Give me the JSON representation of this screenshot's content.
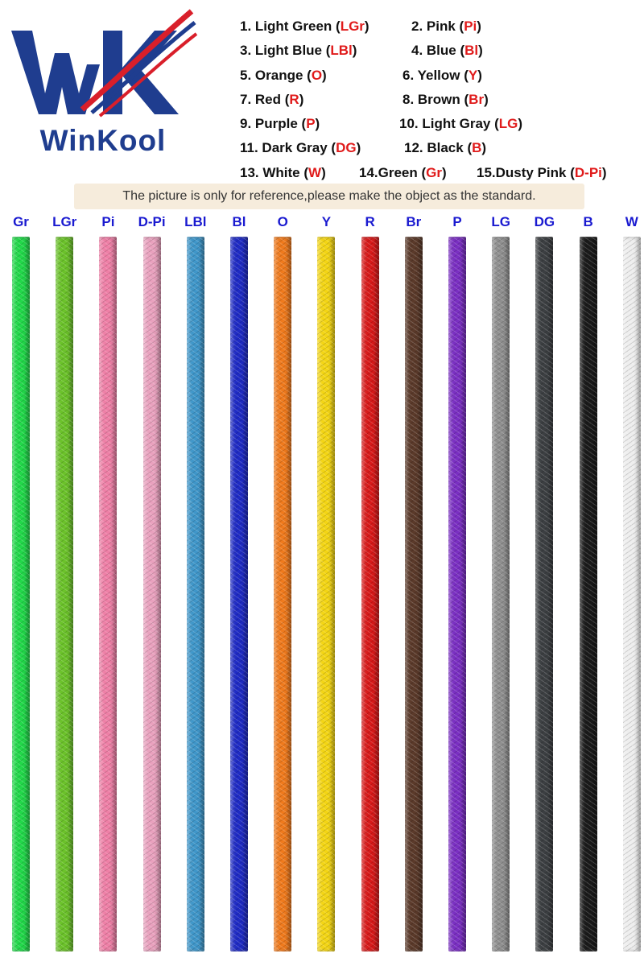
{
  "brand": {
    "name": "WinKool",
    "colors": {
      "navy": "#1f3d8f",
      "red": "#d91f2a",
      "white": "#ffffff"
    }
  },
  "legend": [
    [
      {
        "label": "1. Light Green (",
        "code": "LGr",
        "suffix": ")"
      },
      {
        "label": "2. Pink (",
        "code": "Pi",
        "suffix": ")"
      }
    ],
    [
      {
        "label": "3. Light Blue (",
        "code": "LBl",
        "suffix": ")"
      },
      {
        "label": "4. Blue (",
        "code": "Bl",
        "suffix": ")"
      }
    ],
    [
      {
        "label": "5. Orange (",
        "code": "O",
        "suffix": ")"
      },
      {
        "label": "6. Yellow (",
        "code": "Y",
        "suffix": ")"
      }
    ],
    [
      {
        "label": "7. Red (",
        "code": "R",
        "suffix": ")"
      },
      {
        "label": "8. Brown (",
        "code": "Br",
        "suffix": ")"
      }
    ],
    [
      {
        "label": "9. Purple (",
        "code": "P",
        "suffix": ")"
      },
      {
        "label": "10. Light Gray (",
        "code": "LG",
        "suffix": ")"
      }
    ],
    [
      {
        "label": "11. Dark Gray (",
        "code": "DG",
        "suffix": ")"
      },
      {
        "label": "12. Black (",
        "code": "B",
        "suffix": ")"
      }
    ],
    [
      {
        "label": "13. White (",
        "code": "W",
        "suffix": ")"
      },
      {
        "label": "14.Green (",
        "code": "Gr",
        "suffix": ")"
      },
      {
        "label": "15.Dusty Pink (",
        "code": "D-Pi",
        "suffix": ")"
      }
    ]
  ],
  "notice": "The picture is only for reference,please make the object as the standard.",
  "cables": [
    {
      "label": "Gr",
      "color": "#22d84a"
    },
    {
      "label": "LGr",
      "color": "#6bc22a"
    },
    {
      "label": "Pi",
      "color": "#ee7fa6"
    },
    {
      "label": "D-Pi",
      "color": "#e9a1be"
    },
    {
      "label": "LBl",
      "color": "#3f96c9"
    },
    {
      "label": "Bl",
      "color": "#1f2bc4"
    },
    {
      "label": "O",
      "color": "#ef7a1d"
    },
    {
      "label": "Y",
      "color": "#f3d514"
    },
    {
      "label": "R",
      "color": "#d81a1a"
    },
    {
      "label": "Br",
      "color": "#5b3a2a"
    },
    {
      "label": "P",
      "color": "#7a2fc2"
    },
    {
      "label": "LG",
      "color": "#8f8f8f"
    },
    {
      "label": "DG",
      "color": "#3c3f42"
    },
    {
      "label": "B",
      "color": "#1a1a1a"
    },
    {
      "label": "W",
      "color": "#eeeeee"
    }
  ]
}
